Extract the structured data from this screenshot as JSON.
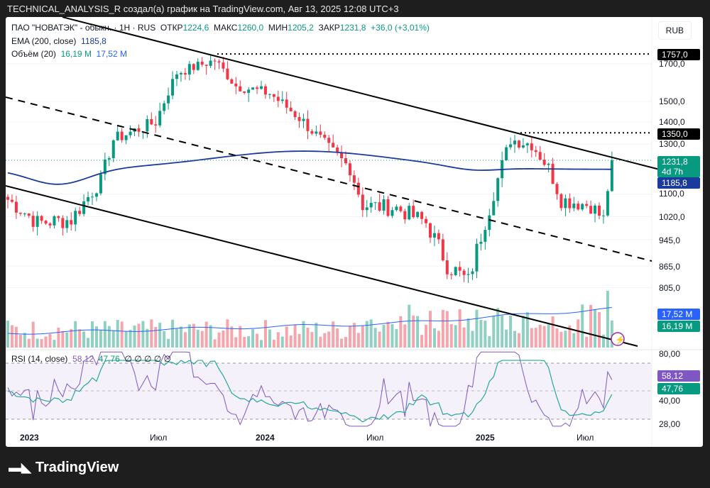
{
  "header": {
    "attribution": "TECHNICAL_ANALYSIS_R создал(а) график на TradingView.com, Авг 13, 2025 12:08 UTC+3"
  },
  "legend": {
    "symbol": "ПАО \"НОВАТЭК\" - обыкн. · 1H · RUS",
    "open_label": "ОТКР",
    "open": "1224,6",
    "high_label": "МАКС",
    "high": "1260,0",
    "low_label": "МИН",
    "low": "1205,2",
    "close_label": "ЗАКР",
    "close": "1231,8",
    "change": "+36,0 (+3,01%)",
    "ema_label": "EMA (200, close)",
    "ema_value": "1185,8",
    "vol_label": "Объём (20)",
    "vol1": "16,19 M",
    "vol2": "17,52 M",
    "rsi_label": "RSI (14, close)",
    "rsi1": "58,12",
    "rsi2": "47,76",
    "rsi_extra": "∅ ∅ ∅ ∅ ∅"
  },
  "currency": "RUB",
  "price_axis": [
    "1700,0",
    "1500,0",
    "1400,0",
    "1300,0",
    "1100,0",
    "1020,0",
    "945,0",
    "865,0",
    "805,0"
  ],
  "price_tags": {
    "max": "1757,0",
    "level": "1350,0",
    "last": "1231,8",
    "countdown": "4d 7h",
    "ema": "1185,8",
    "vol_ma": "17,52 M",
    "vol": "16,19 M",
    "rsi": "58,12",
    "rsi_ma": "47,76"
  },
  "rsi_axis": [
    "80,00",
    "40,00",
    "28,00"
  ],
  "time_axis": [
    "2023",
    "Июл",
    "2024",
    "Июл",
    "2025",
    "Июл"
  ],
  "brand": "TradingView",
  "colors": {
    "up": "#089981",
    "down": "#f23645",
    "ema": "#1a3a9c",
    "rsi": "#7e57c2"
  },
  "chart_data": {
    "type": "candlestick",
    "interval": "weekly approx",
    "key_closes": [
      [
        0,
        1080
      ],
      [
        7,
        1000
      ],
      [
        15,
        1010
      ],
      [
        22,
        1150
      ],
      [
        25,
        1320
      ],
      [
        35,
        1400
      ],
      [
        40,
        1650
      ],
      [
        49,
        1720
      ],
      [
        54,
        1580
      ],
      [
        62,
        1540
      ],
      [
        69,
        1420
      ],
      [
        76,
        1280
      ],
      [
        81,
        1200
      ],
      [
        84,
        1060
      ],
      [
        92,
        1050
      ],
      [
        99,
        1000
      ],
      [
        104,
        870
      ],
      [
        109,
        820
      ],
      [
        114,
        1050
      ],
      [
        119,
        1320
      ],
      [
        124,
        1300
      ],
      [
        128,
        1200
      ],
      [
        131,
        1080
      ],
      [
        138,
        1060
      ],
      [
        141,
        1010
      ],
      [
        143,
        1232
      ]
    ],
    "ylim": [
      780,
      1800
    ],
    "scale": "log"
  }
}
